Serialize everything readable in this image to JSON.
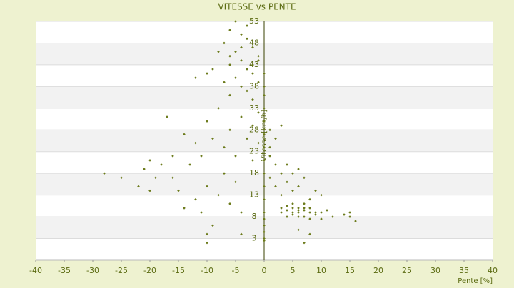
{
  "chart_data": {
    "type": "scatter",
    "title": "VITESSE vs PENTE",
    "x_label": "Pente [%]",
    "y_label": "Vitesse [km/h]",
    "xlim": [
      -40,
      40
    ],
    "xticks": [
      -40,
      -35,
      -30,
      -25,
      -20,
      -15,
      -10,
      -5,
      0,
      5,
      10,
      15,
      20,
      25,
      30,
      35,
      40
    ],
    "ylim": [
      -2,
      53
    ],
    "yticks": [
      3,
      8,
      13,
      18,
      23,
      28,
      33,
      38,
      43,
      48,
      53
    ],
    "grid": true,
    "series": [
      {
        "name": "Vitesse",
        "color": "#6b7a1a",
        "x": [
          -5,
          -6,
          -4,
          -3,
          -7,
          -2,
          -5,
          -8,
          -1,
          -4,
          -6,
          -3,
          -9,
          -2,
          -5,
          -7,
          -1,
          -4,
          -3,
          -6,
          -2,
          -10,
          -12,
          -1,
          -3,
          -4,
          -6,
          -2,
          -14,
          -12,
          -10,
          -8,
          -6,
          -4,
          -3,
          -2,
          -1,
          0,
          1,
          2,
          -17,
          -16,
          -11,
          -9,
          -7,
          -5,
          -13,
          -1,
          0,
          1,
          3,
          -2,
          -20,
          -18,
          -28,
          -25,
          -22,
          -21,
          -19,
          -15,
          -12,
          -10,
          -8,
          -6,
          -5,
          -4,
          -11,
          -14,
          -9,
          -10,
          -20,
          -16,
          -7,
          1,
          2,
          3,
          4,
          5,
          6,
          7,
          8,
          2,
          3,
          4,
          5,
          1,
          6,
          9,
          10,
          3,
          4,
          5,
          5,
          6,
          6,
          7,
          7,
          8,
          8,
          9,
          9,
          10,
          11,
          12,
          4,
          5,
          6,
          7,
          8,
          10,
          15,
          15,
          16,
          14,
          3,
          4,
          5,
          6,
          7,
          0,
          0,
          0,
          0,
          0,
          0,
          0,
          0,
          0,
          0,
          0,
          0,
          0,
          0,
          -10,
          7,
          8,
          6,
          -4,
          0
        ],
        "values": [
          53,
          51,
          50,
          49,
          48,
          47,
          46,
          46,
          45,
          44,
          43,
          42,
          42,
          41,
          40,
          39,
          39,
          38,
          37,
          36,
          35,
          41,
          40,
          44,
          52,
          47,
          45,
          43,
          27,
          25,
          30,
          33,
          28,
          31,
          26,
          29,
          32,
          30,
          28,
          26,
          31,
          22,
          22,
          26,
          24,
          22,
          20,
          25,
          27,
          24,
          29,
          21,
          21,
          20,
          18,
          17,
          15,
          19,
          17,
          14,
          12,
          15,
          13,
          11,
          16,
          9,
          9,
          10,
          6,
          4,
          14,
          17,
          18,
          22,
          20,
          18,
          16,
          14,
          15,
          17,
          12,
          15,
          13,
          20,
          18,
          17,
          19,
          14,
          13,
          9,
          9.5,
          10,
          8.5,
          9,
          10,
          9.5,
          8,
          9,
          10,
          9,
          8.5,
          9,
          9.5,
          8,
          10.5,
          11,
          8,
          11,
          7.5,
          7.5,
          8,
          9,
          7,
          8.5,
          10,
          8,
          9,
          9.5,
          10,
          3,
          6,
          9,
          12,
          15,
          18,
          21,
          24,
          33,
          36,
          38,
          41,
          4.5,
          7.5,
          2,
          2,
          4,
          5,
          4,
          2.5
        ]
      }
    ]
  }
}
